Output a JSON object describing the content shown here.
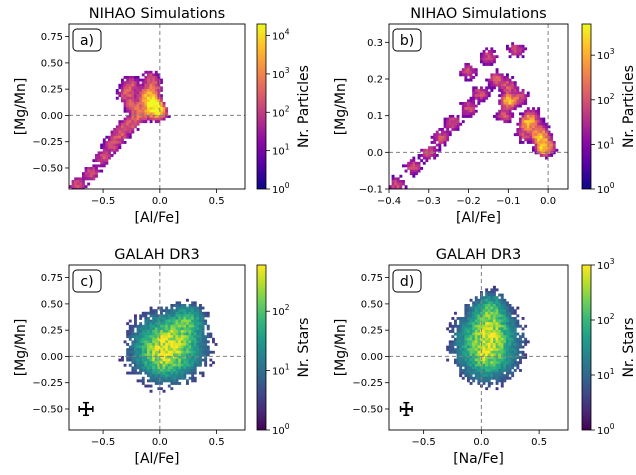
{
  "colors": {
    "plasma": [
      "#0d0887",
      "#5302a3",
      "#8b0aa5",
      "#b83289",
      "#db5c68",
      "#f48849",
      "#febd2a",
      "#f0f921"
    ],
    "viridis": [
      "#440154",
      "#482878",
      "#3e4989",
      "#31688e",
      "#26828e",
      "#1f9e89",
      "#35b779",
      "#6ece58",
      "#b5de2b",
      "#fde725"
    ],
    "refline": "#808080"
  },
  "chart_data": [
    {
      "id": "a",
      "type": "heatmap",
      "panel_label": "a)",
      "title": "NIHAO Simulations",
      "xlabel": "[Al/Fe]",
      "ylabel": "[Mg/Mn]",
      "xlim": [
        -0.8,
        0.75
      ],
      "ylim": [
        -0.7,
        0.87
      ],
      "xticks": [
        -0.5,
        0.0,
        0.5
      ],
      "xtick_labels": [
        "−0.5",
        "0.0",
        "0.5"
      ],
      "yticks": [
        -0.5,
        -0.25,
        0.0,
        0.25,
        0.5,
        0.75
      ],
      "ytick_labels": [
        "−0.50",
        "−0.25",
        "0.00",
        "0.25",
        "0.50",
        "0.75"
      ],
      "ref_lines": {
        "x": 0.0,
        "y": 0.0
      },
      "colorbar": {
        "label": "Nr. Particles",
        "cmap": "plasma",
        "scale": "log",
        "range": [
          1,
          20000
        ],
        "ticks": [
          1,
          10,
          100,
          1000,
          10000
        ],
        "tick_labels": [
          "10^0",
          "10^1",
          "10^2",
          "10^3",
          "10^4"
        ]
      },
      "density": {
        "points": [
          [
            -0.72,
            -0.66
          ],
          [
            -0.6,
            -0.55
          ],
          [
            -0.5,
            -0.4
          ],
          [
            -0.42,
            -0.28
          ],
          [
            -0.35,
            -0.18
          ],
          [
            -0.28,
            -0.1
          ],
          [
            -0.2,
            -0.02
          ],
          [
            -0.14,
            0.04
          ],
          [
            -0.08,
            0.1
          ],
          [
            -0.04,
            0.06
          ],
          [
            -0.01,
            0.02
          ],
          [
            -0.24,
            0.1
          ],
          [
            -0.3,
            0.2
          ],
          [
            -0.26,
            0.3
          ],
          [
            -0.12,
            0.2
          ],
          [
            -0.08,
            0.35
          ],
          [
            -0.05,
            0.25
          ]
        ],
        "core": [
          [
            -0.1,
            0.15
          ],
          [
            -0.05,
            0.1
          ],
          [
            -0.02,
            0.05
          ]
        ]
      }
    },
    {
      "id": "b",
      "type": "heatmap",
      "panel_label": "b)",
      "title": "NIHAO Simulations",
      "xlabel": "[Al/Fe]",
      "ylabel": "[Mg/Mn]",
      "xlim": [
        -0.4,
        0.05
      ],
      "ylim": [
        -0.1,
        0.35
      ],
      "xticks": [
        -0.4,
        -0.3,
        -0.2,
        -0.1,
        0.0
      ],
      "xtick_labels": [
        "−0.4",
        "−0.3",
        "−0.2",
        "−0.1",
        "0.0"
      ],
      "yticks": [
        -0.1,
        0.0,
        0.1,
        0.2,
        0.3
      ],
      "ytick_labels": [
        "−0.1",
        "0.0",
        "0.1",
        "0.2",
        "0.3"
      ],
      "ref_lines": {
        "x": 0.0,
        "y": 0.0
      },
      "colorbar": {
        "label": "Nr. Particles",
        "cmap": "plasma",
        "scale": "log",
        "range": [
          1,
          5000
        ],
        "ticks": [
          1,
          10,
          100,
          1000
        ],
        "tick_labels": [
          "10^0",
          "10^1",
          "10^2",
          "10^3"
        ]
      },
      "density": {
        "points": [
          [
            -0.38,
            -0.09
          ],
          [
            -0.34,
            -0.04
          ],
          [
            -0.3,
            0.0
          ],
          [
            -0.27,
            0.04
          ],
          [
            -0.24,
            0.08
          ],
          [
            -0.2,
            0.12
          ],
          [
            -0.17,
            0.16
          ],
          [
            -0.13,
            0.2
          ],
          [
            -0.1,
            0.18
          ],
          [
            -0.07,
            0.15
          ],
          [
            -0.04,
            0.1
          ],
          [
            -0.02,
            0.06
          ],
          [
            0.0,
            0.02
          ],
          [
            -0.15,
            0.26
          ],
          [
            -0.08,
            0.28
          ],
          [
            -0.2,
            0.22
          ],
          [
            -0.11,
            0.1
          ],
          [
            -0.06,
            0.05
          ]
        ],
        "core": [
          [
            -0.02,
            0.04
          ],
          [
            -0.05,
            0.08
          ],
          [
            -0.1,
            0.14
          ],
          [
            -0.01,
            0.01
          ]
        ]
      }
    },
    {
      "id": "c",
      "type": "heatmap",
      "panel_label": "c)",
      "title": "GALAH DR3",
      "xlabel": "[Al/Fe]",
      "ylabel": "[Mg/Mn]",
      "xlim": [
        -0.8,
        0.75
      ],
      "ylim": [
        -0.7,
        0.87
      ],
      "xticks": [
        -0.5,
        0.0,
        0.5
      ],
      "xtick_labels": [
        "−0.5",
        "0.0",
        "0.5"
      ],
      "yticks": [
        -0.5,
        -0.25,
        0.0,
        0.25,
        0.5,
        0.75
      ],
      "ytick_labels": [
        "−0.50",
        "−0.25",
        "0.00",
        "0.25",
        "0.50",
        "0.75"
      ],
      "ref_lines": {
        "x": 0.0,
        "y": 0.0
      },
      "colorbar": {
        "label": "Nr. Stars",
        "cmap": "viridis",
        "scale": "log",
        "range": [
          1,
          600
        ],
        "ticks": [
          1,
          10,
          100
        ],
        "tick_labels": [
          "10^0",
          "10^1",
          "10^2"
        ]
      },
      "error_bar": {
        "x": -0.65,
        "y": -0.5,
        "xerr": 0.06,
        "yerr": 0.06
      },
      "density": {
        "center": [
          0.07,
          0.08
        ],
        "spread": [
          0.28,
          0.28
        ],
        "core": [
          [
            0.02,
            0.02
          ],
          [
            0.25,
            0.35
          ],
          [
            0.1,
            0.15
          ]
        ]
      }
    },
    {
      "id": "d",
      "type": "heatmap",
      "panel_label": "d)",
      "title": "GALAH DR3",
      "xlabel": "[Na/Fe]",
      "ylabel": "[Mg/Mn]",
      "xlim": [
        -0.8,
        0.75
      ],
      "ylim": [
        -0.7,
        0.87
      ],
      "xticks": [
        -0.5,
        0.0,
        0.5
      ],
      "xtick_labels": [
        "−0.5",
        "0.0",
        "0.5"
      ],
      "yticks": [
        -0.5,
        -0.25,
        0.0,
        0.25,
        0.5,
        0.75
      ],
      "ytick_labels": [
        "−0.50",
        "−0.25",
        "0.00",
        "0.25",
        "0.50",
        "0.75"
      ],
      "ref_lines": {
        "x": 0.0,
        "y": 0.0
      },
      "colorbar": {
        "label": "Nr. Stars",
        "cmap": "viridis",
        "scale": "log",
        "range": [
          1,
          1000
        ],
        "ticks": [
          1,
          10,
          100,
          1000
        ],
        "tick_labels": [
          "10^0",
          "10^1",
          "10^2",
          "10^3"
        ]
      },
      "error_bar": {
        "x": -0.65,
        "y": -0.5,
        "xerr": 0.05,
        "yerr": 0.06
      },
      "density": {
        "center": [
          0.05,
          0.12
        ],
        "spread": [
          0.24,
          0.3
        ],
        "core": [
          [
            0.05,
            0.05
          ],
          [
            0.08,
            0.45
          ],
          [
            0.07,
            0.25
          ]
        ]
      }
    }
  ]
}
